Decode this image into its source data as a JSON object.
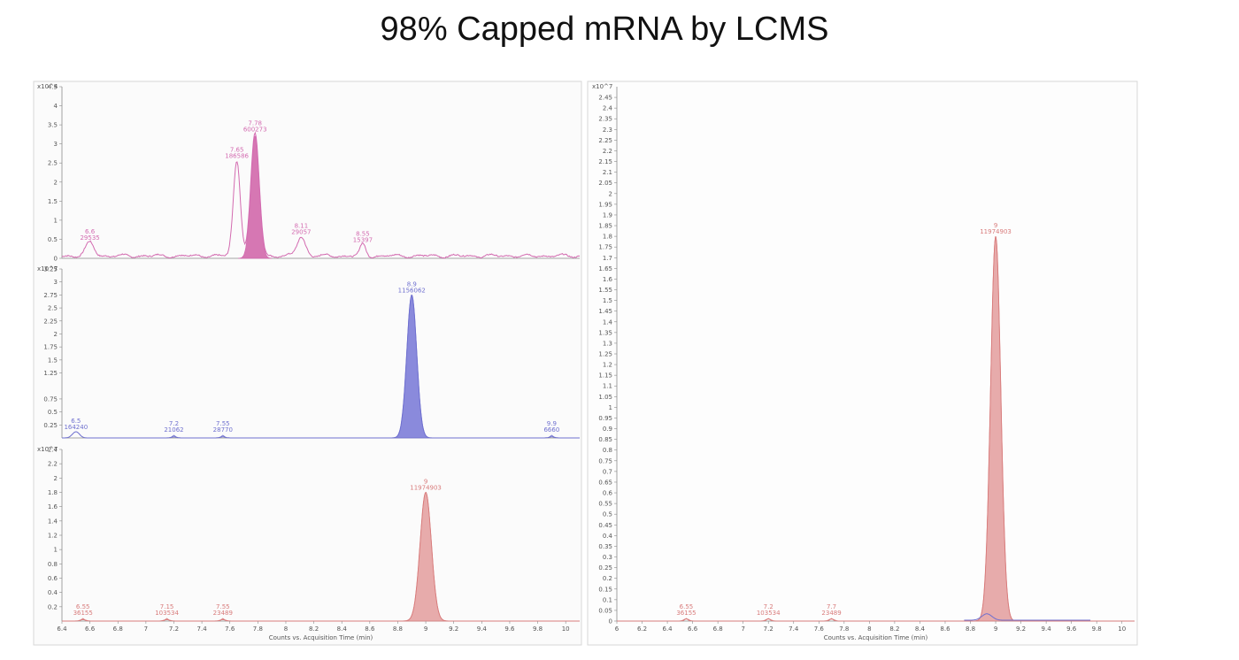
{
  "slide": {
    "title": "98% Capped mRNA by LCMS"
  },
  "colors": {
    "pink": "#d36bb0",
    "pink_fill": "#cf5fa6",
    "blue": "#6f70cf",
    "blue_fill": "#7676d6",
    "red": "#d87b7b",
    "red_fill": "#e39c9c",
    "frame": "#cfcfcf"
  },
  "chart_data": [
    {
      "type": "line",
      "panel": "left-top",
      "y_multiplier_label": "x10^4",
      "ylim": [
        0,
        4.5
      ],
      "y_ticks": [
        0,
        0.5,
        1,
        1.5,
        2,
        2.5,
        3,
        3.5,
        4,
        4.5
      ],
      "xlim": [
        6.4,
        10.1
      ],
      "peaks": [
        {
          "rt": 6.6,
          "area": "29535",
          "height": 0.35,
          "width": 0.03,
          "filled": false
        },
        {
          "rt": 7.65,
          "area": "186586",
          "height": 2.5,
          "width": 0.025,
          "filled": false
        },
        {
          "rt": 7.78,
          "area": "600273",
          "height": 3.2,
          "width": 0.03,
          "filled": true
        },
        {
          "rt": 8.11,
          "area": "29057",
          "height": 0.5,
          "width": 0.03,
          "filled": false
        },
        {
          "rt": 8.55,
          "area": "15397",
          "height": 0.3,
          "width": 0.02,
          "filled": false
        }
      ],
      "noise": 0.08
    },
    {
      "type": "line",
      "panel": "left-middle",
      "y_multiplier_label": "x10^7",
      "ylim": [
        0,
        3.25
      ],
      "y_ticks": [
        0.25,
        0.5,
        0.75,
        1.25,
        1.5,
        1.75,
        2,
        2.25,
        2.5,
        2.75,
        3,
        3.25
      ],
      "xlim": [
        6.4,
        10.1
      ],
      "peaks": [
        {
          "rt": 6.5,
          "area": "164240",
          "height": 0.12,
          "width": 0.025,
          "filled": false
        },
        {
          "rt": 7.2,
          "area": "21062",
          "height": 0.02,
          "width": 0.02,
          "filled": false
        },
        {
          "rt": 7.55,
          "area": "28770",
          "height": 0.02,
          "width": 0.02,
          "filled": false
        },
        {
          "rt": 8.9,
          "area": "1156062",
          "height": 2.75,
          "width": 0.035,
          "filled": true
        },
        {
          "rt": 9.9,
          "area": "6660",
          "height": 0.02,
          "width": 0.02,
          "filled": false
        }
      ],
      "noise": 0
    },
    {
      "type": "line",
      "panel": "left-bottom",
      "y_multiplier_label": "x10^7",
      "ylim": [
        0,
        2.4
      ],
      "y_ticks": [
        0.2,
        0.4,
        0.6,
        0.8,
        1,
        1.2,
        1.4,
        1.6,
        1.8,
        2,
        2.2,
        2.4
      ],
      "xlim": [
        6.4,
        10.1
      ],
      "peaks": [
        {
          "rt": 6.55,
          "area": "36155",
          "height": 0.02,
          "width": 0.02,
          "filled": false
        },
        {
          "rt": 7.15,
          "area": "103534",
          "height": 0.02,
          "width": 0.02,
          "filled": false
        },
        {
          "rt": 7.55,
          "area": "23489",
          "height": 0.02,
          "width": 0.02,
          "filled": false
        },
        {
          "rt": 9.0,
          "area": "11974903",
          "height": 1.8,
          "width": 0.04,
          "filled": true
        }
      ],
      "noise": 0
    },
    {
      "type": "line",
      "panel": "right-overlay",
      "y_multiplier_label": "x10^7",
      "ylim": [
        0,
        2.5
      ],
      "y_ticks": [
        0,
        0.05,
        0.1,
        0.15,
        0.2,
        0.25,
        0.3,
        0.35,
        0.4,
        0.45,
        0.5,
        0.55,
        0.6,
        0.65,
        0.7,
        0.75,
        0.8,
        0.85,
        0.9,
        0.95,
        1,
        1.05,
        1.1,
        1.15,
        1.2,
        1.25,
        1.3,
        1.35,
        1.4,
        1.45,
        1.5,
        1.55,
        1.6,
        1.65,
        1.7,
        1.75,
        1.8,
        1.85,
        1.9,
        1.95,
        2,
        2.05,
        2.1,
        2.15,
        2.2,
        2.25,
        2.3,
        2.35,
        2.4,
        2.45
      ],
      "xlim": [
        6.0,
        10.1
      ],
      "peaks": [
        {
          "rt": 6.55,
          "area": "36155",
          "height": 0.01,
          "width": 0.02,
          "filled": false
        },
        {
          "rt": 7.2,
          "area": "103534",
          "height": 0.01,
          "width": 0.02,
          "filled": false
        },
        {
          "rt": 7.7,
          "area": "23489",
          "height": 0.01,
          "width": 0.02,
          "filled": false
        },
        {
          "rt": 9.0,
          "area": "11974903",
          "height": 1.8,
          "width": 0.04,
          "filled": true
        }
      ],
      "noise": 0
    }
  ],
  "axis": {
    "x_ticks": [
      "6",
      "6.2",
      "6.4",
      "6.6",
      "6.8",
      "7",
      "7.2",
      "7.4",
      "7.6",
      "7.8",
      "8",
      "8.2",
      "8.4",
      "8.6",
      "8.8",
      "9",
      "9.2",
      "9.4",
      "9.6",
      "9.8",
      "10"
    ],
    "x_label": "Counts vs. Acquisition Time (min)"
  }
}
